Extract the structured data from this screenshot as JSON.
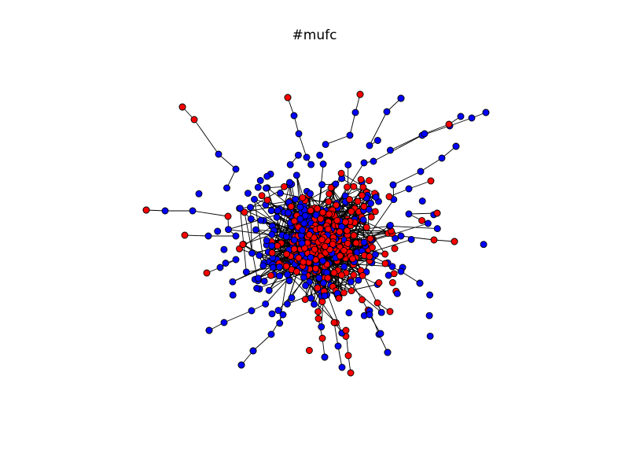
{
  "figure": {
    "title": "#mufc"
  },
  "graph": {
    "type": "network",
    "node_colors": {
      "group_a": "#ff0000",
      "group_b": "#0000ff"
    },
    "node_outline_color": "#000000",
    "edge_color": "#000000",
    "background": "#ffffff"
  }
}
